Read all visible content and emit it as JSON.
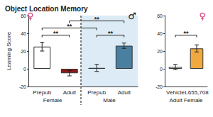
{
  "chart_data": [
    {
      "type": "bar",
      "title": "Object Location Memory",
      "y_label": "Learning Score",
      "categories": [
        "Prepub",
        "Adult",
        "Prepub",
        "Adult"
      ],
      "values": [
        25,
        -5,
        1,
        26
      ],
      "errors": [
        5,
        3,
        4,
        3
      ],
      "colors": [
        "#ffffff",
        "#8b1a1a",
        "#ffffff",
        "#4a7fa0"
      ],
      "groups": [
        {
          "label": "Female",
          "symbol": "♀",
          "count": 2
        },
        {
          "label": "Male",
          "symbol": "♂",
          "count": 2
        }
      ],
      "comparisons": [
        {
          "from": 0,
          "to": 1,
          "label": "**",
          "y": 38
        },
        {
          "from": 2,
          "to": 3,
          "label": "**",
          "y": 38
        },
        {
          "from": 0,
          "to": 2,
          "label": "**",
          "y": 46
        },
        {
          "from": 1,
          "to": 3,
          "label": "**",
          "y": 54
        }
      ],
      "ylim": [
        -20,
        60
      ],
      "yticks": [
        -20,
        0,
        20,
        40,
        60
      ],
      "grid": false
    },
    {
      "type": "bar",
      "categories": [
        "Vehicle",
        "L655,708"
      ],
      "values": [
        2,
        23
      ],
      "errors": [
        3,
        4
      ],
      "colors": [
        "#ffffff",
        "#f0a840"
      ],
      "groups": [
        {
          "label": "Adult Female",
          "symbol": "♀",
          "count": 2
        }
      ],
      "comparisons": [
        {
          "from": 0,
          "to": 1,
          "label": "**",
          "y": 38
        }
      ],
      "ylim": [
        -20,
        60
      ],
      "yticks": [
        -20,
        0,
        20,
        40,
        60
      ],
      "grid": false
    }
  ]
}
